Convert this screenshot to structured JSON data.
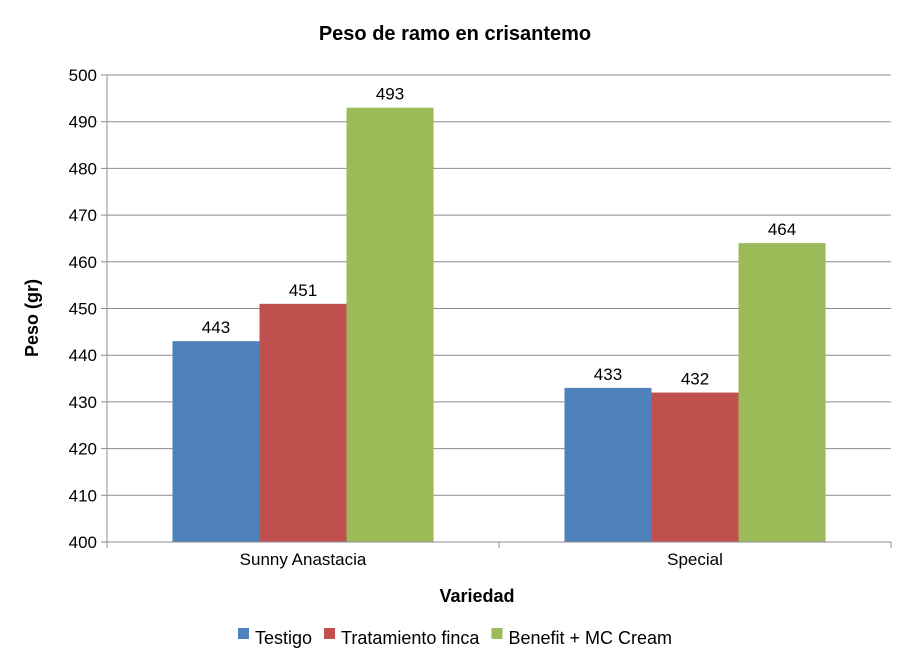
{
  "chart_data": {
    "type": "bar",
    "title": "Peso de ramo en crisantemo",
    "xlabel": "Variedad",
    "ylabel": "Peso (gr)",
    "ylim": [
      400,
      500
    ],
    "ytick_step": 10,
    "categories": [
      "Sunny Anastacia",
      "Special"
    ],
    "series": [
      {
        "name": "Testigo",
        "color": "#4F81BD",
        "values": [
          443,
          433
        ]
      },
      {
        "name": "Tratamiento finca",
        "color": "#C0504D",
        "values": [
          451,
          432
        ]
      },
      {
        "name": "Benefit + MC Cream",
        "color": "#9BBB59",
        "values": [
          493,
          464
        ]
      }
    ],
    "grid": true,
    "legend_position": "bottom",
    "data_labels": true
  }
}
